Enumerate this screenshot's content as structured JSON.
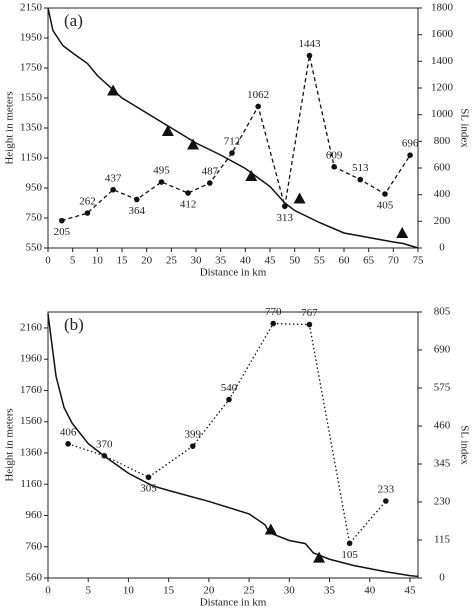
{
  "chart_data": [
    {
      "type": "line",
      "panel_label": "(a)",
      "xlabel": "Distance in km",
      "ylabel": "Height in meters",
      "y2label": "SL index",
      "xlim": [
        0,
        75
      ],
      "xticks": [
        0,
        5,
        10,
        15,
        20,
        25,
        30,
        35,
        40,
        45,
        50,
        55,
        60,
        65,
        70,
        75
      ],
      "ylim": [
        550,
        2150
      ],
      "yticks": [
        550,
        750,
        950,
        1150,
        1350,
        1550,
        1750,
        1950,
        2150
      ],
      "y2lim": [
        0,
        1800
      ],
      "y2ticks": [
        0,
        200,
        400,
        600,
        800,
        1000,
        1200,
        1400,
        1600,
        1800
      ],
      "series": [
        {
          "color": "#111111",
          "marker": "none",
          "x": [
            0,
            1,
            3,
            5,
            8,
            10,
            12,
            15,
            20,
            25,
            30,
            35,
            40,
            45,
            48,
            50,
            55,
            60,
            65,
            70,
            72,
            75
          ],
          "values": [
            2150,
            2000,
            1900,
            1850,
            1780,
            1700,
            1640,
            1550,
            1450,
            1350,
            1250,
            1170,
            1080,
            960,
            850,
            800,
            720,
            650,
            620,
            590,
            580,
            550
          ]
        },
        {
          "color": "#111111",
          "marker": "dot",
          "dash": "4,3",
          "axis": "y2",
          "labels": true,
          "x": [
            2.8,
            8,
            13.2,
            18,
            23,
            28.4,
            32.8,
            37.3,
            42.6,
            48,
            53,
            58,
            63.3,
            68.3,
            73.4
          ],
          "values": [
            205,
            262,
            437,
            364,
            495,
            412,
            487,
            712,
            1062,
            313,
            1443,
            609,
            513,
            405,
            696
          ]
        },
        {
          "color": "#111111",
          "marker": "triangle",
          "line": false,
          "x": [
            13.2,
            24.3,
            29.4,
            41.2,
            51,
            71.8
          ],
          "values": [
            1600,
            1330,
            1240,
            1030,
            880,
            650
          ]
        }
      ]
    },
    {
      "type": "line",
      "panel_label": "(b)",
      "xlabel": "Distance in km",
      "ylabel": "Height in meters",
      "y2label": "SL index",
      "xlim": [
        0,
        46
      ],
      "xticks": [
        0,
        5,
        10,
        15,
        20,
        25,
        30,
        35,
        40,
        45
      ],
      "ylim": [
        560,
        2262
      ],
      "yticks": [
        560,
        760,
        960,
        1160,
        1360,
        1560,
        1760,
        1960,
        2160
      ],
      "y2lim": [
        0,
        805
      ],
      "y2ticks": [
        0,
        115,
        230,
        345,
        460,
        575,
        690,
        805
      ],
      "series": [
        {
          "color": "#111111",
          "marker": "none",
          "x": [
            0,
            0.5,
            1,
            2,
            3,
            5,
            7,
            10,
            13,
            15,
            20,
            25,
            27,
            27.5,
            30,
            32,
            33,
            35,
            38,
            42,
            45,
            46
          ],
          "values": [
            2250,
            2050,
            1850,
            1650,
            1550,
            1420,
            1340,
            1230,
            1150,
            1120,
            1050,
            970,
            900,
            850,
            800,
            780,
            720,
            680,
            640,
            600,
            575,
            570
          ]
        },
        {
          "color": "#111111",
          "marker": "dot",
          "dash": "1.5,2.5",
          "axis": "y2",
          "labels": true,
          "x": [
            2.5,
            7,
            12.5,
            18,
            22.5,
            28,
            32.5,
            37.5,
            42
          ],
          "values": [
            406,
            370,
            305,
            399,
            540,
            770,
            767,
            105,
            233
          ]
        },
        {
          "color": "#111111",
          "marker": "triangle",
          "line": false,
          "x": [
            27.7,
            33.7
          ],
          "values": [
            870,
            690
          ]
        }
      ]
    }
  ]
}
